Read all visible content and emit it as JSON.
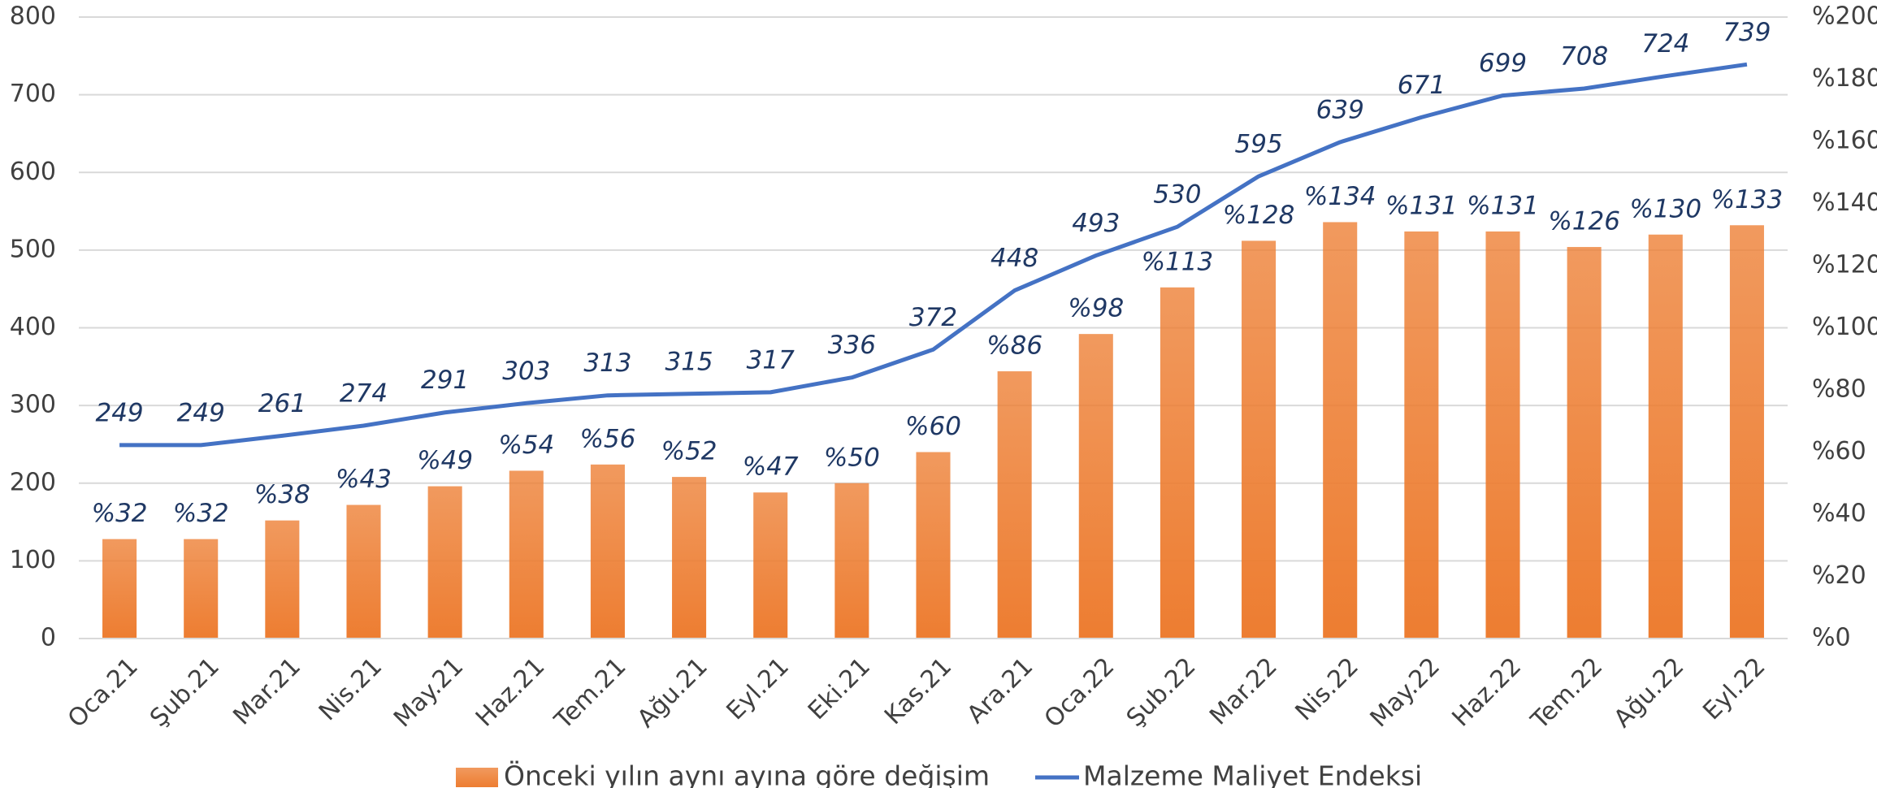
{
  "chart_data": {
    "type": "bar-line",
    "categories": [
      "Oca.21",
      "Şub.21",
      "Mar.21",
      "Nis.21",
      "May.21",
      "Haz.21",
      "Tem.21",
      "Ağu.21",
      "Eyl.21",
      "Eki.21",
      "Kas.21",
      "Ara.21",
      "Oca.22",
      "Şub.22",
      "Mar.22",
      "Nis.22",
      "May.22",
      "Haz.22",
      "Tem.22",
      "Ağu.22",
      "Eyl.22"
    ],
    "series": [
      {
        "name": "Önceki yılın aynı ayına göre değişim",
        "type": "bar",
        "axis": "y2",
        "color": "#ed7d31",
        "values": [
          32,
          32,
          38,
          43,
          49,
          54,
          56,
          52,
          47,
          50,
          60,
          86,
          98,
          113,
          128,
          134,
          131,
          131,
          126,
          130,
          133
        ],
        "value_labels": [
          "%32",
          "%32",
          "%38",
          "%43",
          "%49",
          "%54",
          "%56",
          "%52",
          "%47",
          "%50",
          "%60",
          "%86",
          "%98",
          "%113",
          "%128",
          "%134",
          "%131",
          "%131",
          "%126",
          "%130",
          "%133"
        ]
      },
      {
        "name": "Malzeme Maliyet Endeksi",
        "type": "line",
        "color": "#4472c4",
        "values": [
          249,
          249,
          261,
          274,
          291,
          303,
          313,
          315,
          317,
          336,
          372,
          448,
          493,
          530,
          595,
          639,
          671,
          699,
          708,
          724,
          739
        ]
      }
    ],
    "ylim": [
      0,
      800
    ],
    "yticks": [
      0,
      100,
      200,
      300,
      400,
      500,
      600,
      700,
      800
    ],
    "y2lim": [
      0,
      200
    ],
    "y2ticks": [
      {
        "value": 0,
        "label": "%0"
      },
      {
        "value": 20,
        "label": "%20"
      },
      {
        "value": 40,
        "label": "%40"
      },
      {
        "value": 60,
        "label": "%60"
      },
      {
        "value": 80,
        "label": "%80"
      },
      {
        "value": 100,
        "label": "%100"
      },
      {
        "value": 120,
        "label": "%120"
      },
      {
        "value": 140,
        "label": "%140"
      },
      {
        "value": 160,
        "label": "%160"
      },
      {
        "value": 180,
        "label": "%180"
      },
      {
        "value": 200,
        "label": "%200"
      }
    ],
    "grid": true,
    "legend": "bottom"
  }
}
